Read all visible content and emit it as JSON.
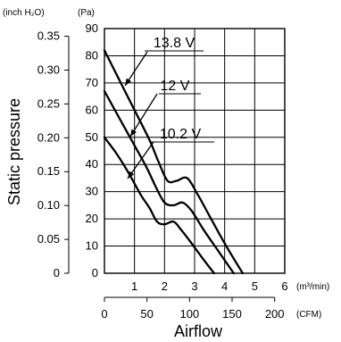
{
  "chart_data": {
    "type": "line",
    "title": "",
    "ylabel": "Static pressure",
    "xlabel": "Airflow",
    "y_units": {
      "left": "(inch H₂O)",
      "right": "(Pa)"
    },
    "x_units": {
      "primary": "(m³/min)",
      "secondary": "(CFM)"
    },
    "xlim": [
      0,
      6
    ],
    "ylim": [
      0,
      90
    ],
    "x_ticks": [
      "1",
      "2",
      "3",
      "4",
      "5",
      "6"
    ],
    "x_ticks_cfm": [
      "0",
      "50",
      "100",
      "150",
      "200"
    ],
    "y_ticks_pa": [
      "0",
      "10",
      "20",
      "30",
      "40",
      "50",
      "60",
      "70",
      "80",
      "90"
    ],
    "y_ticks_inch": [
      "0",
      "0.05",
      "0.10",
      "0.15",
      "0.20",
      "0.25",
      "0.30",
      "0.35"
    ],
    "grid": true,
    "series": [
      {
        "name": "13.8 V",
        "points": [
          [
            0,
            82
          ],
          [
            0.5,
            71
          ],
          [
            1.0,
            60
          ],
          [
            1.5,
            49
          ],
          [
            1.8,
            41
          ],
          [
            2.1,
            34
          ],
          [
            2.4,
            34
          ],
          [
            2.75,
            35
          ],
          [
            3.1,
            29
          ],
          [
            3.5,
            21
          ],
          [
            4.0,
            11
          ],
          [
            4.6,
            0
          ]
        ]
      },
      {
        "name": "12 V",
        "points": [
          [
            0,
            67
          ],
          [
            0.5,
            57
          ],
          [
            1.0,
            47
          ],
          [
            1.4,
            39
          ],
          [
            1.7,
            32
          ],
          [
            2.0,
            26
          ],
          [
            2.3,
            25
          ],
          [
            2.6,
            26
          ],
          [
            2.9,
            23
          ],
          [
            3.3,
            16
          ],
          [
            3.8,
            8
          ],
          [
            4.3,
            0
          ]
        ]
      },
      {
        "name": "10.2 V",
        "points": [
          [
            0,
            50
          ],
          [
            0.4,
            44
          ],
          [
            0.8,
            37
          ],
          [
            1.2,
            29
          ],
          [
            1.5,
            24
          ],
          [
            1.75,
            19
          ],
          [
            2.0,
            18
          ],
          [
            2.3,
            19
          ],
          [
            2.55,
            16
          ],
          [
            2.9,
            11
          ],
          [
            3.3,
            5
          ],
          [
            3.65,
            0
          ]
        ]
      }
    ]
  }
}
